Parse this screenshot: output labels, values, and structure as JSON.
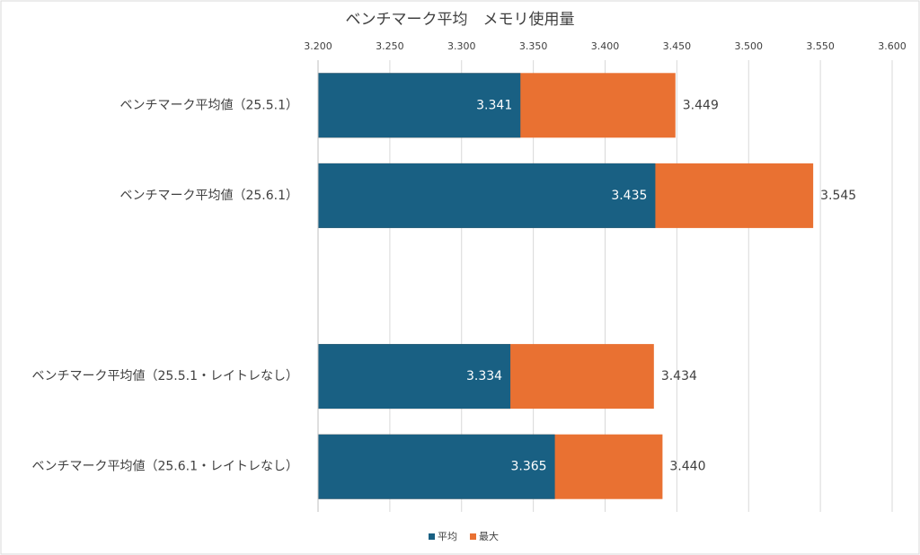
{
  "chart_data": {
    "type": "bar",
    "orientation": "horizontal",
    "overlap": true,
    "title": "ベンチマーク平均　メモリ使用量",
    "categories": [
      "ベンチマーク平均値（25.5.1）",
      "ベンチマーク平均値（25.6.1）",
      null,
      "ベンチマーク平均値（25.5.1・レイトレなし）",
      "ベンチマーク平均値（25.6.1・レイトレなし）"
    ],
    "series": [
      {
        "name": "最大",
        "color": "#e97132",
        "values": [
          3.449,
          3.545,
          null,
          3.434,
          3.44
        ],
        "value_labels": [
          "3.449",
          "3.545",
          null,
          "3.434",
          "3.440"
        ]
      },
      {
        "name": "平均",
        "color": "#196083",
        "values": [
          3.341,
          3.435,
          null,
          3.334,
          3.365
        ],
        "value_labels": [
          "3.341",
          "3.435",
          null,
          "3.334",
          "3.365"
        ]
      }
    ],
    "xlim": [
      3.2,
      3.6
    ],
    "xticks": [
      {
        "value": 3.2,
        "label": "3.200"
      },
      {
        "value": 3.25,
        "label": "3.250"
      },
      {
        "value": 3.3,
        "label": "3.300"
      },
      {
        "value": 3.35,
        "label": "3.350"
      },
      {
        "value": 3.4,
        "label": "3.400"
      },
      {
        "value": 3.45,
        "label": "3.450"
      },
      {
        "value": 3.5,
        "label": "3.500"
      },
      {
        "value": 3.55,
        "label": "3.550"
      },
      {
        "value": 3.6,
        "label": "3.600"
      }
    ],
    "grid": true,
    "legend": "bottom",
    "legend_order": [
      1,
      0
    ]
  }
}
